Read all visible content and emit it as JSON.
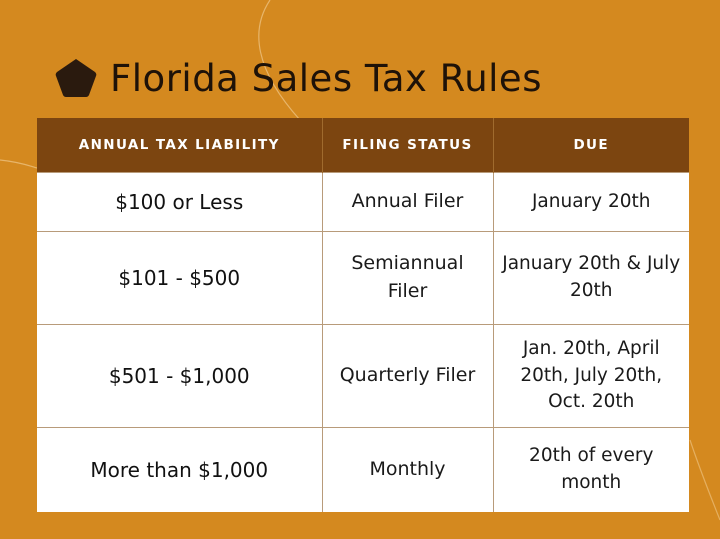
{
  "title": "Florida Sales Tax Rules",
  "colors": {
    "background": "#d4891f",
    "header": "#7c4510",
    "pentagon": "#2a1a0e"
  },
  "icon": "pentagon-icon",
  "table": {
    "headers": [
      "ANNUAL TAX LIABILITY",
      "FILING STATUS",
      "DUE"
    ],
    "rows": [
      {
        "liability": "$100 or Less",
        "status": "Annual Filer",
        "due": "January 20th"
      },
      {
        "liability": "$101 - $500",
        "status": "Semiannual Filer",
        "due": "January 20th & July 20th"
      },
      {
        "liability": "$501 - $1,000",
        "status": "Quarterly Filer",
        "due": "Jan. 20th, April 20th, July 20th, Oct. 20th"
      },
      {
        "liability": "More than $1,000",
        "status": "Monthly",
        "due": "20th of every month"
      }
    ]
  }
}
